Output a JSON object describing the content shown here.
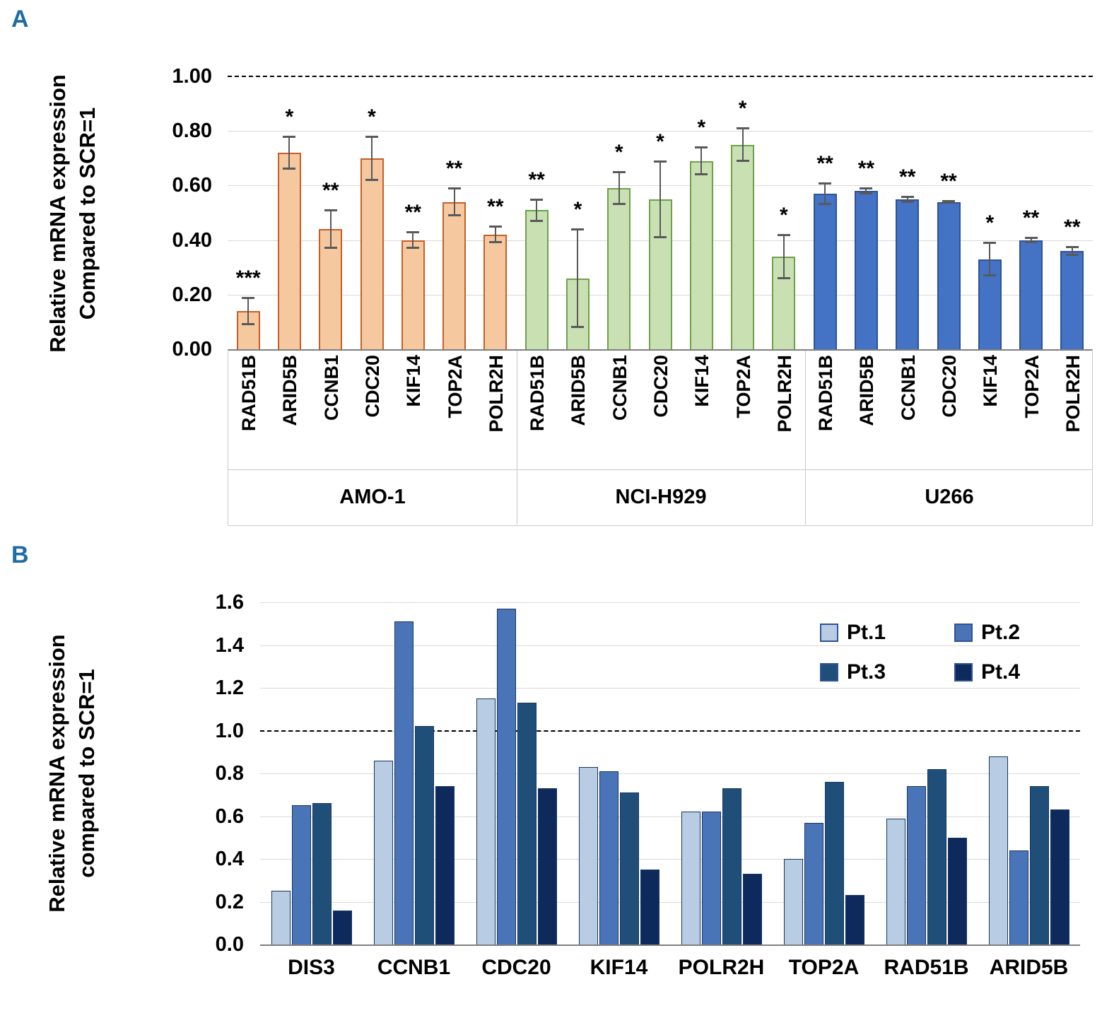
{
  "panels": {
    "a_label": "A",
    "b_label": "B",
    "label_color": "#1F6BA5"
  },
  "chart_data": [
    {
      "type": "bar",
      "panel": "A",
      "title": "",
      "ylabel_lines": [
        "Relative mRNA expression",
        "Compared to SCR=1"
      ],
      "xlabel": "",
      "ylim": [
        0,
        1.0
      ],
      "yticks": [
        0,
        0.2,
        0.4,
        0.6,
        0.8,
        1.0
      ],
      "ytick_labels": [
        "0.00",
        "0.20",
        "0.40",
        "0.60",
        "0.80",
        "1.00"
      ],
      "reference_line": 1.0,
      "grid": true,
      "error_color": "#595959",
      "categories": [
        "RAD51B",
        "ARID5B",
        "CCNB1",
        "CDC20",
        "KIF14",
        "TOP2A",
        "POLR2H"
      ],
      "groups": [
        {
          "name": "AMO-1",
          "fill": "#F5C8A0",
          "stroke": "#C55F27",
          "values": [
            0.14,
            0.72,
            0.44,
            0.7,
            0.4,
            0.54,
            0.42
          ],
          "errors": [
            0.05,
            0.06,
            0.07,
            0.08,
            0.03,
            0.05,
            0.03
          ],
          "stars": [
            "***",
            "*",
            "**",
            "*",
            "**",
            "**",
            "**"
          ]
        },
        {
          "name": "NCI-H929",
          "fill": "#C9E0B3",
          "stroke": "#6FA04A",
          "values": [
            0.51,
            0.26,
            0.59,
            0.55,
            0.69,
            0.75,
            0.34
          ],
          "errors": [
            0.04,
            0.18,
            0.06,
            0.14,
            0.05,
            0.06,
            0.08
          ],
          "stars": [
            "**",
            "*",
            "*",
            "*",
            "*",
            "*",
            "*"
          ]
        },
        {
          "name": "U266",
          "fill": "#4472C4",
          "stroke": "#2E5395",
          "values": [
            0.57,
            0.58,
            0.55,
            0.54,
            0.33,
            0.4,
            0.36
          ],
          "errors": [
            0.04,
            0.01,
            0.01,
            0.005,
            0.06,
            0.01,
            0.015
          ],
          "stars": [
            "**",
            "**",
            "**",
            "**",
            "*",
            "**",
            "**"
          ]
        }
      ]
    },
    {
      "type": "bar",
      "panel": "B",
      "title": "",
      "ylabel_lines": [
        "Relative mRNA expression",
        "compared to SCR=1"
      ],
      "xlabel": "",
      "ylim": [
        0,
        1.6
      ],
      "yticks": [
        0,
        0.2,
        0.4,
        0.6,
        0.8,
        1.0,
        1.2,
        1.4,
        1.6
      ],
      "ytick_labels": [
        "0.0",
        "0.2",
        "0.4",
        "0.6",
        "0.8",
        "1.0",
        "1.2",
        "1.4",
        "1.6"
      ],
      "reference_line": 1.0,
      "grid": true,
      "legend_position": "top-right",
      "categories": [
        "DIS3",
        "CCNB1",
        "CDC20",
        "KIF14",
        "POLR2H",
        "TOP2A",
        "RAD51B",
        "ARID5B"
      ],
      "series": [
        {
          "name": "Pt.1",
          "color": "#B8CCE4",
          "values": [
            0.25,
            0.86,
            1.15,
            0.83,
            0.62,
            0.4,
            0.59,
            0.88
          ]
        },
        {
          "name": "Pt.2",
          "color": "#4A74B8",
          "values": [
            0.65,
            1.51,
            1.57,
            0.81,
            0.62,
            0.57,
            0.74,
            0.44
          ]
        },
        {
          "name": "Pt.3",
          "color": "#1F4E79",
          "values": [
            0.66,
            1.02,
            1.13,
            0.71,
            0.73,
            0.76,
            0.82,
            0.74
          ]
        },
        {
          "name": "Pt.4",
          "color": "#0E2A5C",
          "values": [
            0.16,
            0.74,
            0.73,
            0.35,
            0.33,
            0.23,
            0.5,
            0.63
          ]
        }
      ]
    }
  ]
}
